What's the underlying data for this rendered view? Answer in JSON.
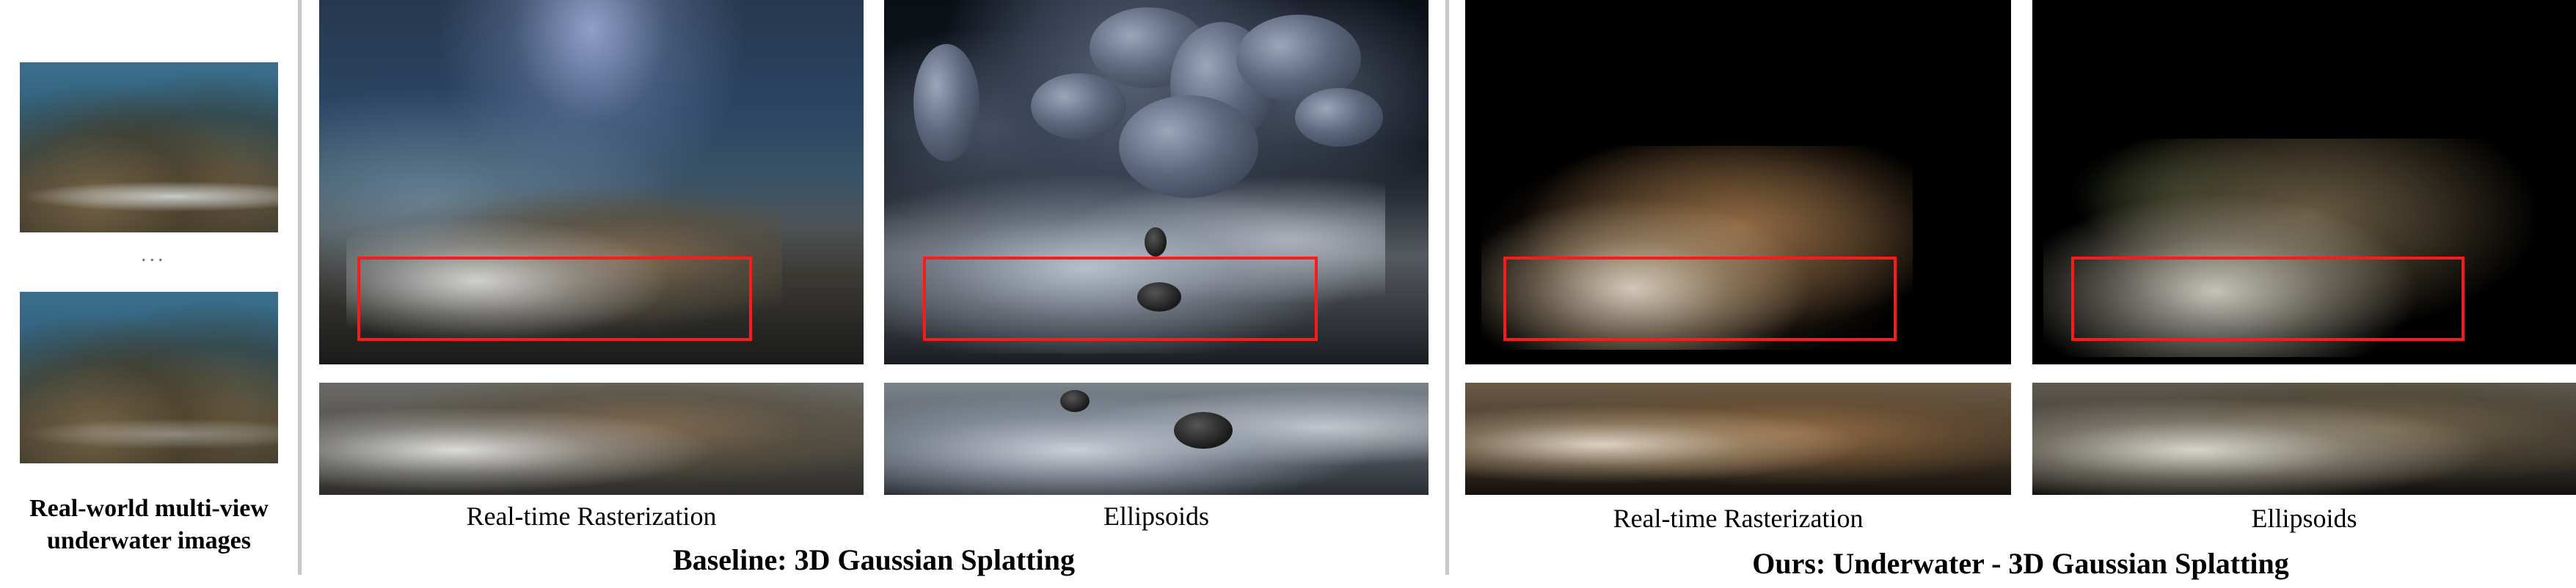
{
  "input": {
    "label_line1": "Real-world multi-view",
    "label_line2": "underwater images",
    "ellipsis": "..."
  },
  "baseline": {
    "title": "Baseline: 3D Gaussian Splatting",
    "captions": [
      "Real-time Rasterization",
      "Ellipsoids"
    ]
  },
  "ours": {
    "title": "Ours: Underwater - 3D Gaussian Splatting",
    "captions": [
      "Real-time Rasterization",
      "Ellipsoids"
    ]
  },
  "colors": {
    "highlight_box": "#ff1a1a",
    "divider": "#c8c8c8"
  }
}
